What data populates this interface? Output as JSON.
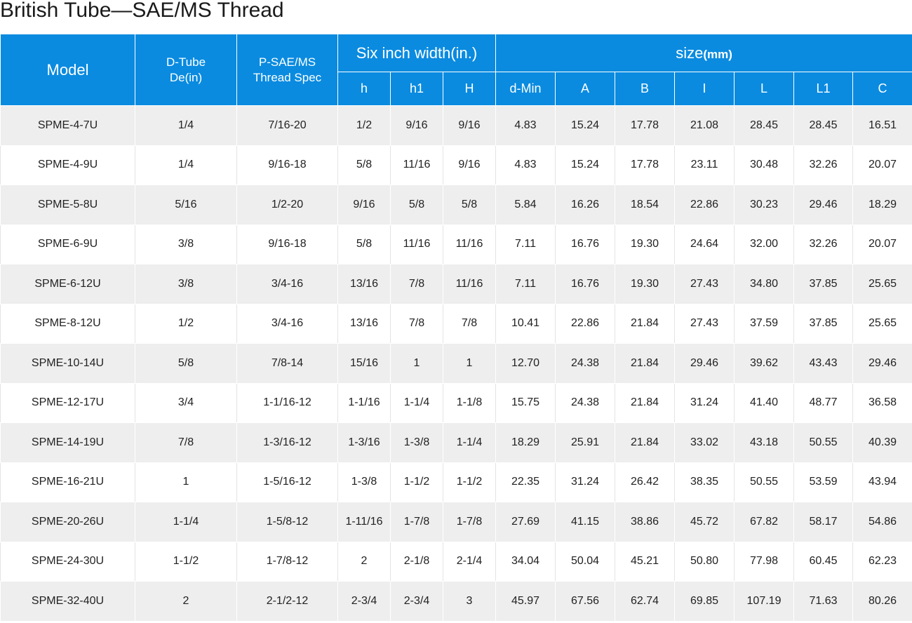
{
  "title": "British Tube—SAE/MS Thread",
  "header": {
    "model": "Model",
    "dtube_line1": "D-Tube",
    "dtube_line2": "De(in)",
    "psae_line1": "P-SAE/MS",
    "psae_line2": "Thread Spec",
    "six_inch": "Six inch width(in.)",
    "size": "size",
    "size_unit": "(mm)",
    "sub": [
      "h",
      "h1",
      "H",
      "d-Min",
      "A",
      "B",
      "I",
      "L",
      "L1",
      "C"
    ]
  },
  "rows": [
    [
      "SPME-4-7U",
      "1/4",
      "7/16-20",
      "1/2",
      "9/16",
      "9/16",
      "4.83",
      "15.24",
      "17.78",
      "21.08",
      "28.45",
      "28.45",
      "16.51"
    ],
    [
      "SPME-4-9U",
      "1/4",
      "9/16-18",
      "5/8",
      "11/16",
      "9/16",
      "4.83",
      "15.24",
      "17.78",
      "23.11",
      "30.48",
      "32.26",
      "20.07"
    ],
    [
      "SPME-5-8U",
      "5/16",
      "1/2-20",
      "9/16",
      "5/8",
      "5/8",
      "5.84",
      "16.26",
      "18.54",
      "22.86",
      "30.23",
      "29.46",
      "18.29"
    ],
    [
      "SPME-6-9U",
      "3/8",
      "9/16-18",
      "5/8",
      "11/16",
      "11/16",
      "7.11",
      "16.76",
      "19.30",
      "24.64",
      "32.00",
      "32.26",
      "20.07"
    ],
    [
      "SPME-6-12U",
      "3/8",
      "3/4-16",
      "13/16",
      "7/8",
      "11/16",
      "7.11",
      "16.76",
      "19.30",
      "27.43",
      "34.80",
      "37.85",
      "25.65"
    ],
    [
      "SPME-8-12U",
      "1/2",
      "3/4-16",
      "13/16",
      "7/8",
      "7/8",
      "10.41",
      "22.86",
      "21.84",
      "27.43",
      "37.59",
      "37.85",
      "25.65"
    ],
    [
      "SPME-10-14U",
      "5/8",
      "7/8-14",
      "15/16",
      "1",
      "1",
      "12.70",
      "24.38",
      "21.84",
      "29.46",
      "39.62",
      "43.43",
      "29.46"
    ],
    [
      "SPME-12-17U",
      "3/4",
      "1-1/16-12",
      "1-1/16",
      "1-1/4",
      "1-1/8",
      "15.75",
      "24.38",
      "21.84",
      "31.24",
      "41.40",
      "48.77",
      "36.58"
    ],
    [
      "SPME-14-19U",
      "7/8",
      "1-3/16-12",
      "1-3/16",
      "1-3/8",
      "1-1/4",
      "18.29",
      "25.91",
      "21.84",
      "33.02",
      "43.18",
      "50.55",
      "40.39"
    ],
    [
      "SPME-16-21U",
      "1",
      "1-5/16-12",
      "1-3/8",
      "1-1/2",
      "1-1/2",
      "22.35",
      "31.24",
      "26.42",
      "38.35",
      "50.55",
      "53.59",
      "43.94"
    ],
    [
      "SPME-20-26U",
      "1-1/4",
      "1-5/8-12",
      "1-11/16",
      "1-7/8",
      "1-7/8",
      "27.69",
      "41.15",
      "38.86",
      "45.72",
      "67.82",
      "58.17",
      "54.86"
    ],
    [
      "SPME-24-30U",
      "1-1/2",
      "1-7/8-12",
      "2",
      "2-1/8",
      "2-1/4",
      "34.04",
      "50.04",
      "45.21",
      "50.80",
      "77.98",
      "60.45",
      "62.23"
    ],
    [
      "SPME-32-40U",
      "2",
      "2-1/2-12",
      "2-3/4",
      "2-3/4",
      "3",
      "45.97",
      "67.56",
      "62.74",
      "69.85",
      "107.19",
      "71.63",
      "80.26"
    ]
  ],
  "colors": {
    "header_bg": "#0a8be0",
    "row_alt_bg": "#eeeeee"
  }
}
